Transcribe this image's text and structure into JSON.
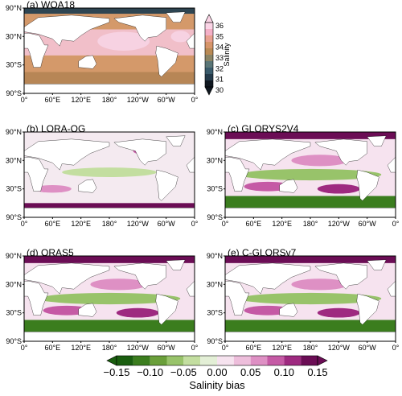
{
  "panels": [
    {
      "label": "(a) WOA18"
    },
    {
      "label": "(b) LORA-QG"
    },
    {
      "label": "(c) GLORYS2V4"
    },
    {
      "label": "(d) ORAS5"
    },
    {
      "label": "(e) C-GLORSv7"
    }
  ],
  "lat_labels": [
    "90°N",
    "30°N",
    "30°S",
    "90°S"
  ],
  "lon_labels": [
    "0°",
    "60°E",
    "120°E",
    "180°",
    "120°W",
    "60°W",
    "0°"
  ],
  "salinity_colorbar": {
    "title": "Salinity",
    "labels": [
      "36",
      "35",
      "34",
      "33",
      "32",
      "31",
      "30"
    ]
  },
  "bias_colorbar": {
    "title": "Salinity bias",
    "labels": [
      "−0.15",
      "−0.10",
      "−0.05",
      "0.00",
      "0.05",
      "0.10",
      "0.15"
    ]
  }
}
